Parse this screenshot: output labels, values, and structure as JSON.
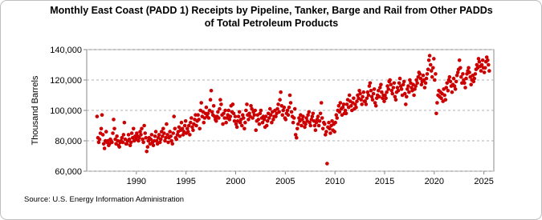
{
  "chart_data": {
    "type": "scatter",
    "title": "Monthly East Coast (PADD 1) Receipts by Pipeline, Tanker, Barge and Rail from Other PADDs of Total Petroleum Products",
    "y_label": "Thousand Barrels",
    "source": "Source: U.S. Energy Information Administration",
    "xlim": [
      1985,
      2026
    ],
    "xticks": [
      1990,
      1995,
      2000,
      2005,
      2010,
      2015,
      2020,
      2025
    ],
    "ylim": [
      60000,
      140000
    ],
    "yticks": [
      {
        "value": 60000,
        "label": "60,000"
      },
      {
        "value": 80000,
        "label": "80,000"
      },
      {
        "value": 100000,
        "label": "100,000"
      },
      {
        "value": 120000,
        "label": "120,000"
      },
      {
        "value": 140000,
        "label": "140,000"
      }
    ],
    "grid": true,
    "series": [
      {
        "color": "#cc0000",
        "x": [
          1986.04,
          1986.13,
          1986.21,
          1986.29,
          1986.38,
          1986.46,
          1986.54,
          1986.63,
          1986.71,
          1986.79,
          1986.88,
          1986.96,
          1987.04,
          1987.13,
          1987.21,
          1987.29,
          1987.38,
          1987.46,
          1987.54,
          1987.63,
          1987.71,
          1987.79,
          1987.88,
          1987.96,
          1988.04,
          1988.13,
          1988.21,
          1988.29,
          1988.38,
          1988.46,
          1988.54,
          1988.63,
          1988.71,
          1988.79,
          1988.88,
          1988.96,
          1989.04,
          1989.13,
          1989.21,
          1989.29,
          1989.38,
          1989.46,
          1989.54,
          1989.63,
          1989.71,
          1989.79,
          1989.88,
          1989.96,
          1990.04,
          1990.13,
          1990.21,
          1990.29,
          1990.38,
          1990.46,
          1990.54,
          1990.63,
          1990.71,
          1990.79,
          1990.88,
          1990.96,
          1991.04,
          1991.13,
          1991.21,
          1991.29,
          1991.38,
          1991.46,
          1991.54,
          1991.63,
          1991.71,
          1991.79,
          1991.88,
          1991.96,
          1992.04,
          1992.13,
          1992.21,
          1992.29,
          1992.38,
          1992.46,
          1992.54,
          1992.63,
          1992.71,
          1992.79,
          1992.88,
          1992.96,
          1993.04,
          1993.13,
          1993.21,
          1993.29,
          1993.38,
          1993.46,
          1993.54,
          1993.63,
          1993.71,
          1993.79,
          1993.88,
          1993.96,
          1994.04,
          1994.13,
          1994.21,
          1994.29,
          1994.38,
          1994.46,
          1994.54,
          1994.63,
          1994.71,
          1994.79,
          1994.88,
          1994.96,
          1995.04,
          1995.13,
          1995.21,
          1995.29,
          1995.38,
          1995.46,
          1995.54,
          1995.63,
          1995.71,
          1995.79,
          1995.88,
          1995.96,
          1996.04,
          1996.13,
          1996.21,
          1996.29,
          1996.38,
          1996.46,
          1996.54,
          1996.63,
          1996.71,
          1996.79,
          1996.88,
          1996.96,
          1997.04,
          1997.13,
          1997.21,
          1997.29,
          1997.38,
          1997.46,
          1997.54,
          1997.63,
          1997.71,
          1997.79,
          1997.88,
          1997.96,
          1998.04,
          1998.13,
          1998.21,
          1998.29,
          1998.38,
          1998.46,
          1998.54,
          1998.63,
          1998.71,
          1998.79,
          1998.88,
          1998.96,
          1999.04,
          1999.13,
          1999.21,
          1999.29,
          1999.38,
          1999.46,
          1999.54,
          1999.63,
          1999.71,
          1999.79,
          1999.88,
          1999.96,
          2000.04,
          2000.13,
          2000.21,
          2000.29,
          2000.38,
          2000.46,
          2000.54,
          2000.63,
          2000.71,
          2000.79,
          2000.88,
          2000.96,
          2001.04,
          2001.13,
          2001.21,
          2001.29,
          2001.38,
          2001.46,
          2001.54,
          2001.63,
          2001.71,
          2001.79,
          2001.88,
          2001.96,
          2002.04,
          2002.13,
          2002.21,
          2002.29,
          2002.38,
          2002.46,
          2002.54,
          2002.63,
          2002.71,
          2002.79,
          2002.88,
          2002.96,
          2003.04,
          2003.13,
          2003.21,
          2003.29,
          2003.38,
          2003.46,
          2003.54,
          2003.63,
          2003.71,
          2003.79,
          2003.88,
          2003.96,
          2004.04,
          2004.13,
          2004.21,
          2004.29,
          2004.38,
          2004.46,
          2004.54,
          2004.63,
          2004.71,
          2004.79,
          2004.88,
          2004.96,
          2005.04,
          2005.13,
          2005.21,
          2005.29,
          2005.38,
          2005.46,
          2005.54,
          2005.63,
          2005.71,
          2005.79,
          2005.88,
          2005.96,
          2006.04,
          2006.13,
          2006.21,
          2006.29,
          2006.38,
          2006.46,
          2006.54,
          2006.63,
          2006.71,
          2006.79,
          2006.88,
          2006.96,
          2007.04,
          2007.13,
          2007.21,
          2007.29,
          2007.38,
          2007.46,
          2007.54,
          2007.63,
          2007.71,
          2007.79,
          2007.88,
          2007.96,
          2008.04,
          2008.13,
          2008.21,
          2008.29,
          2008.38,
          2008.46,
          2008.54,
          2008.63,
          2008.71,
          2008.79,
          2008.88,
          2008.96,
          2009.04,
          2009.13,
          2009.21,
          2009.29,
          2009.38,
          2009.46,
          2009.54,
          2009.63,
          2009.71,
          2009.79,
          2009.88,
          2009.96,
          2010.04,
          2010.13,
          2010.21,
          2010.29,
          2010.38,
          2010.46,
          2010.54,
          2010.63,
          2010.71,
          2010.79,
          2010.88,
          2010.96,
          2011.04,
          2011.13,
          2011.21,
          2011.29,
          2011.38,
          2011.46,
          2011.54,
          2011.63,
          2011.71,
          2011.79,
          2011.88,
          2011.96,
          2012.04,
          2012.13,
          2012.21,
          2012.29,
          2012.38,
          2012.46,
          2012.54,
          2012.63,
          2012.71,
          2012.79,
          2012.88,
          2012.96,
          2013.04,
          2013.13,
          2013.21,
          2013.29,
          2013.38,
          2013.46,
          2013.54,
          2013.63,
          2013.71,
          2013.79,
          2013.88,
          2013.96,
          2014.04,
          2014.13,
          2014.21,
          2014.29,
          2014.38,
          2014.46,
          2014.54,
          2014.63,
          2014.71,
          2014.79,
          2014.88,
          2014.96,
          2015.04,
          2015.13,
          2015.21,
          2015.29,
          2015.38,
          2015.46,
          2015.54,
          2015.63,
          2015.71,
          2015.79,
          2015.88,
          2015.96,
          2016.04,
          2016.13,
          2016.21,
          2016.29,
          2016.38,
          2016.46,
          2016.54,
          2016.63,
          2016.71,
          2016.79,
          2016.88,
          2016.96,
          2017.04,
          2017.13,
          2017.21,
          2017.29,
          2017.38,
          2017.46,
          2017.54,
          2017.63,
          2017.71,
          2017.79,
          2017.88,
          2017.96,
          2018.04,
          2018.13,
          2018.21,
          2018.29,
          2018.38,
          2018.46,
          2018.54,
          2018.63,
          2018.71,
          2018.79,
          2018.88,
          2018.96,
          2019.04,
          2019.13,
          2019.21,
          2019.29,
          2019.38,
          2019.46,
          2019.54,
          2019.63,
          2019.71,
          2019.79,
          2019.88,
          2019.96,
          2020.04,
          2020.13,
          2020.21,
          2020.29,
          2020.38,
          2020.46,
          2020.54,
          2020.63,
          2020.71,
          2020.79,
          2020.88,
          2020.96,
          2021.04,
          2021.13,
          2021.21,
          2021.29,
          2021.38,
          2021.46,
          2021.54,
          2021.63,
          2021.71,
          2021.79,
          2021.88,
          2021.96,
          2022.04,
          2022.13,
          2022.21,
          2022.29,
          2022.38,
          2022.46,
          2022.54,
          2022.63,
          2022.71,
          2022.79,
          2022.88,
          2022.96,
          2023.04,
          2023.13,
          2023.21,
          2023.29,
          2023.38,
          2023.46,
          2023.54,
          2023.63,
          2023.71,
          2023.79,
          2023.88,
          2023.96,
          2024.04,
          2024.13,
          2024.21,
          2024.29,
          2024.38,
          2024.46,
          2024.54,
          2024.63,
          2024.71,
          2024.79,
          2024.88,
          2024.96,
          2025.04,
          2025.13,
          2025.21,
          2025.29,
          2025.38,
          2025.46,
          2025.54
        ],
        "values": [
          96000,
          82000,
          79000,
          81000,
          85000,
          88000,
          97000,
          84000,
          78000,
          75000,
          80000,
          86000,
          79000,
          80000,
          77000,
          78000,
          81000,
          80000,
          79000,
          85000,
          94000,
          88000,
          81000,
          78000,
          83000,
          80000,
          77000,
          76000,
          79000,
          80000,
          82000,
          79000,
          84000,
          92000,
          81000,
          78000,
          78000,
          80000,
          84000,
          81000,
          77000,
          79000,
          85000,
          82000,
          88000,
          80000,
          83000,
          81000,
          85000,
          83000,
          80000,
          82000,
          86000,
          84000,
          88000,
          81000,
          79000,
          90000,
          85000,
          82000,
          73000,
          76000,
          80000,
          82000,
          78000,
          81000,
          84000,
          79000,
          77000,
          80000,
          83000,
          86000,
          80000,
          78000,
          82000,
          84000,
          79000,
          81000,
          86000,
          83000,
          88000,
          85000,
          80000,
          82000,
          91000,
          84000,
          79000,
          82000,
          86000,
          83000,
          80000,
          78000,
          85000,
          96000,
          88000,
          82000,
          81000,
          84000,
          86000,
          89000,
          83000,
          87000,
          92000,
          88000,
          84000,
          86000,
          90000,
          93000,
          85000,
          88000,
          86000,
          90000,
          84000,
          92000,
          95000,
          89000,
          87000,
          91000,
          94000,
          97000,
          90000,
          93000,
          97000,
          94000,
          88000,
          100000,
          105000,
          96000,
          99000,
          92000,
          95000,
          98000,
          102000,
          96000,
          98000,
          95000,
          100000,
          107000,
          113000,
          99000,
          97000,
          103000,
          96000,
          94000,
          93000,
          96000,
          99000,
          95000,
          101000,
          107000,
          104000,
          97000,
          91000,
          98000,
          95000,
          100000,
          92000,
          95000,
          97000,
          100000,
          94000,
          96000,
          103000,
          99000,
          104000,
          98000,
          93000,
          96000,
          91000,
          89000,
          93000,
          96000,
          99000,
          92000,
          94000,
          90000,
          97000,
          95000,
          88000,
          92000,
          100000,
          104000,
          97000,
          94000,
          98000,
          96000,
          103000,
          101000,
          95000,
          99000,
          97000,
          100000,
          87000,
          93000,
          97000,
          94000,
          91000,
          98000,
          100000,
          95000,
          92000,
          96000,
          94000,
          89000,
          96000,
          90000,
          93000,
          98000,
          95000,
          101000,
          97000,
          92000,
          99000,
          94000,
          96000,
          100000,
          96000,
          98000,
          101000,
          104000,
          99000,
          107000,
          112000,
          103000,
          97000,
          100000,
          102000,
          95000,
          94000,
          98000,
          100000,
          97000,
          102000,
          110000,
          105000,
          99000,
          96000,
          92000,
          95000,
          101000,
          84000,
          82000,
          88000,
          91000,
          95000,
          93000,
          97000,
          90000,
          94000,
          96000,
          92000,
          89000,
          91000,
          95000,
          93000,
          97000,
          99000,
          92000,
          90000,
          94000,
          96000,
          98000,
          93000,
          90000,
          87000,
          92000,
          94000,
          96000,
          90000,
          93000,
          98000,
          105000,
          95000,
          88000,
          92000,
          91000,
          84000,
          86000,
          65000,
          89000,
          92000,
          88000,
          85000,
          90000,
          93000,
          87000,
          91000,
          86000,
          92000,
          97000,
          95000,
          100000,
          103000,
          99000,
          105000,
          101000,
          97000,
          102000,
          104000,
          98000,
          100000,
          98000,
          104000,
          107000,
          102000,
          110000,
          106000,
          103000,
          100000,
          105000,
          108000,
          101000,
          104000,
          102000,
          106000,
          110000,
          108000,
          113000,
          111000,
          107000,
          104000,
          109000,
          112000,
          106000,
          106000,
          104000,
          108000,
          112000,
          110000,
          116000,
          118000,
          113000,
          109000,
          107000,
          111000,
          114000,
          105000,
          103000,
          108000,
          110000,
          113000,
          109000,
          115000,
          117000,
          112000,
          108000,
          110000,
          106000,
          110000,
          108000,
          112000,
          116000,
          114000,
          119000,
          120000,
          117000,
          113000,
          111000,
          115000,
          118000,
          109000,
          107000,
          112000,
          115000,
          113000,
          118000,
          121000,
          116000,
          114000,
          110000,
          117000,
          119000,
          111000,
          104000,
          109000,
          114000,
          116000,
          112000,
          120000,
          118000,
          115000,
          113000,
          117000,
          110000,
          114000,
          116000,
          120000,
          118000,
          122000,
          125000,
          124000,
          121000,
          117000,
          119000,
          123000,
          120000,
          115000,
          118000,
          121000,
          124000,
          127000,
          133000,
          136000,
          130000,
          126000,
          122000,
          128000,
          134000,
          120000,
          124000,
          98000,
          105000,
          110000,
          113000,
          109000,
          112000,
          108000,
          111000,
          106000,
          114000,
          110000,
          107000,
          115000,
          118000,
          113000,
          120000,
          122000,
          119000,
          116000,
          112000,
          117000,
          121000,
          116000,
          114000,
          119000,
          123000,
          125000,
          127000,
          133000,
          128000,
          122000,
          118000,
          124000,
          120000,
          118000,
          115000,
          121000,
          124000,
          126000,
          128000,
          125000,
          122000,
          117000,
          120000,
          123000,
          119000,
          121000,
          124000,
          127000,
          130000,
          128000,
          134000,
          132000,
          129000,
          126000,
          130000,
          133000,
          128000,
          125000,
          128000,
          132000,
          135000,
          133000,
          130000,
          126000
        ]
      }
    ]
  }
}
